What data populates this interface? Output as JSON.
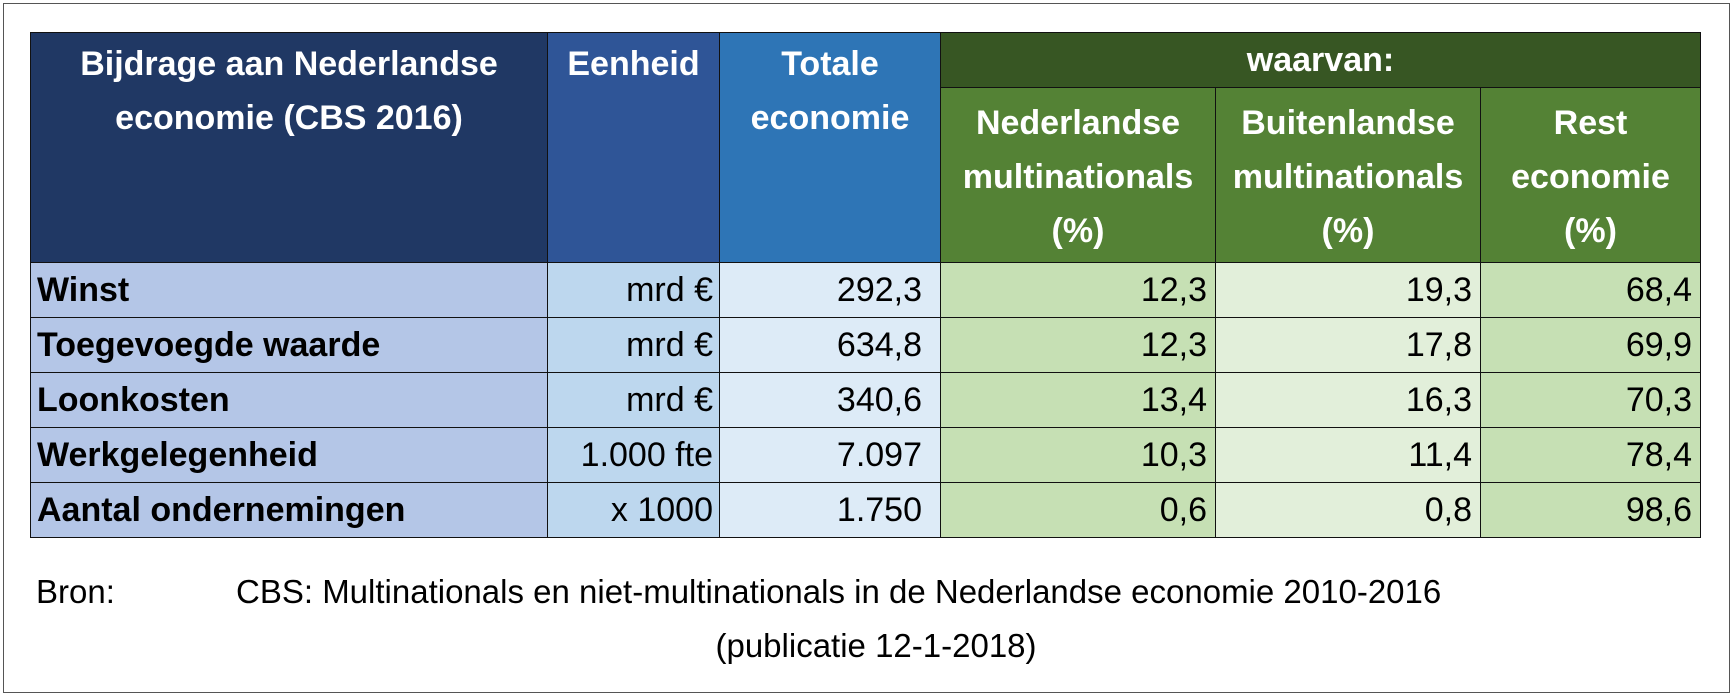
{
  "chart_data": {
    "type": "table",
    "title": "Bijdrage aan Nederlandse economie (CBS 2016)",
    "header": {
      "title": "Bijdrage aan Nederlandse economie (CBS 2016)",
      "unit": "Eenheid",
      "total": "Totale economie",
      "group": "waarvan:",
      "sub": [
        "Nederlandse multinationals (%)",
        "Buitenlandse multinationals (%)",
        "Rest economie (%)"
      ]
    },
    "rows": [
      {
        "label": "Winst",
        "unit": "mrd €",
        "total": "292,3",
        "nl": "12,3",
        "bl": "19,3",
        "rest": "68,4"
      },
      {
        "label": "Toegevoegde waarde",
        "unit": "mrd €",
        "total": "634,8",
        "nl": "12,3",
        "bl": "17,8",
        "rest": "69,9"
      },
      {
        "label": "Loonkosten",
        "unit": "mrd €",
        "total": "340,6",
        "nl": "13,4",
        "bl": "16,3",
        "rest": "70,3"
      },
      {
        "label": "Werkgelegenheid",
        "unit": "1.000 fte",
        "total": "7.097",
        "nl": "10,3",
        "bl": "11,4",
        "rest": "78,4"
      },
      {
        "label": "Aantal ondernemingen",
        "unit": "x 1000",
        "total": "1.750",
        "nl": "0,6",
        "bl": "0,8",
        "rest": "98,6"
      }
    ]
  },
  "source": {
    "label": "Bron:",
    "text": "CBS: Multinationals en niet-multinationals in de Nederlandse economie 2010-2016",
    "publication": "(publicatie 12-1-2018)"
  },
  "colors": {
    "title_header": "#203864",
    "unit_header": "#2f5597",
    "total_header": "#2e75b6",
    "group_header": "#375623",
    "sub_header": "#548235",
    "label_cells": "#b4c6e7",
    "unit_cells": "#bdd7ee",
    "total_cells": "#ddebf7",
    "green_cells": "#c6e0b4",
    "light_green_cells": "#e2efda"
  }
}
